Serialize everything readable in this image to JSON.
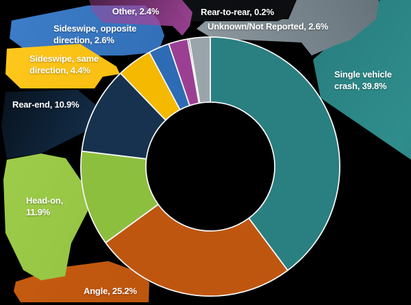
{
  "chart_data": {
    "type": "pie",
    "donut": true,
    "title": "",
    "unit": "%",
    "direction": "clockwise",
    "start_angle": "12-o-clock",
    "background_color": "#000000",
    "stroke_color": "#f5f5f5",
    "slices": [
      {
        "label": "Single vehicle crash",
        "value": 39.8,
        "color": "#2A7F80",
        "display": "Single vehicle crash, 39.8%",
        "lines": [
          "Single vehicle",
          "crash, 39.8%"
        ]
      },
      {
        "label": "Angle",
        "value": 25.2,
        "color": "#BF5610",
        "display": "Angle, 25.2%",
        "lines": [
          "Angle, 25.2%"
        ]
      },
      {
        "label": "Head-on",
        "value": 11.9,
        "color": "#8DBF3E",
        "display": "Head-on, 11.9%",
        "lines": [
          "Head-on,",
          "11.9%"
        ]
      },
      {
        "label": "Rear-end",
        "value": 10.9,
        "color": "#16324E",
        "display": "Rear-end, 10.9%",
        "lines": [
          "Rear-end, 10.9%"
        ]
      },
      {
        "label": "Sideswipe, same direction",
        "value": 4.4,
        "color": "#F4B900",
        "display": "Sideswipe, same direction, 4.4%",
        "lines": [
          "Sideswipe, same",
          "direction, 4.4%"
        ]
      },
      {
        "label": "Sideswipe, opposite direction",
        "value": 2.6,
        "color": "#2D6CB4",
        "display": "Sideswipe, opposite direction, 2.6%",
        "lines": [
          "Sideswipe, opposite",
          "direction, 2.6%"
        ]
      },
      {
        "label": "Other",
        "value": 2.4,
        "color": "#9B3F93",
        "display": "Other, 2.4%",
        "lines": [
          "Other, 2.4%"
        ]
      },
      {
        "label": "Rear-to-rear",
        "value": 0.2,
        "color": "#2E3338",
        "display": "Rear-to-rear, 0.2%",
        "lines": [
          "Rear-to-rear, 0.2%"
        ]
      },
      {
        "label": "Unknown/Not Reported",
        "value": 2.6,
        "color": "#9AA5AB",
        "display": "Unknown/Not Reported, 2.6%",
        "lines": [
          "Unknown/Not Reported, 2.6%"
        ]
      }
    ]
  }
}
